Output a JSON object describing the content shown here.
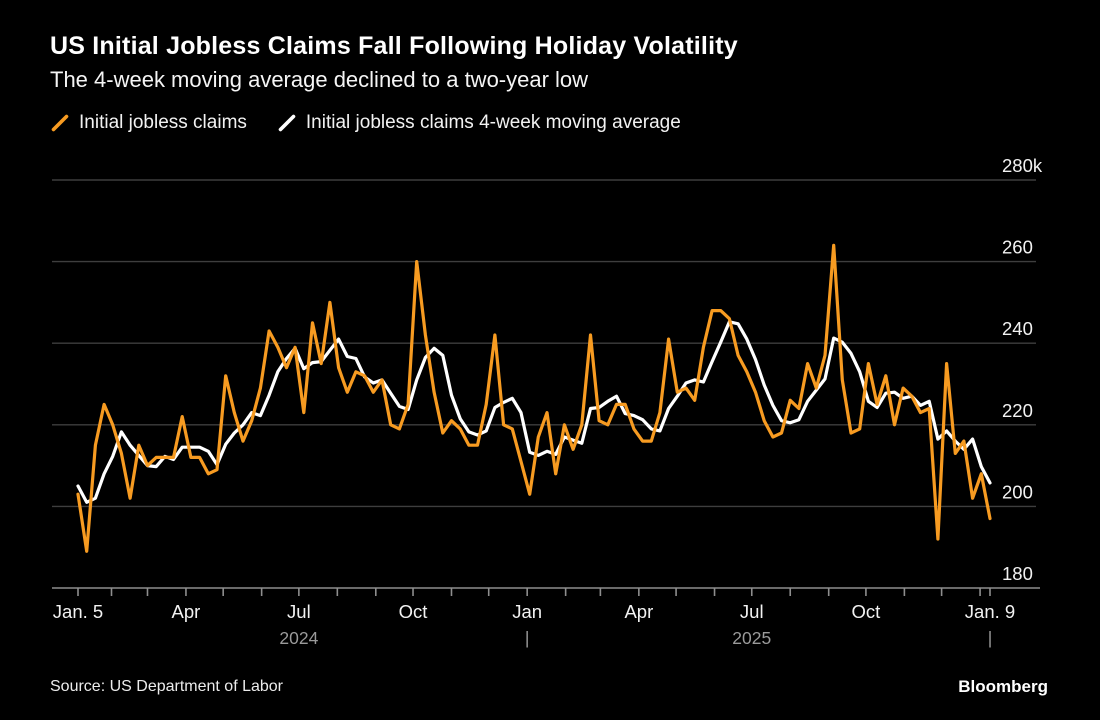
{
  "header": {
    "title": "US Initial Jobless Claims Fall Following Holiday Volatility",
    "subtitle": "The 4-week moving average declined to a two-year low"
  },
  "legend": [
    {
      "label": "Initial jobless claims",
      "color": "#F79B21",
      "swatch": "slash"
    },
    {
      "label": "Initial jobless claims 4-week moving average",
      "color": "#FFFFFF",
      "swatch": "slash"
    }
  ],
  "footer": {
    "source": "Source: US Department of Labor",
    "brand": "Bloomberg"
  },
  "chart_data": {
    "type": "line",
    "unit": "thousands of claims, weekly",
    "ylim": [
      180,
      280
    ],
    "grid": "horizontal",
    "legend_position": "top-left",
    "y_ticks": [
      {
        "value": 280,
        "label": "280k"
      },
      {
        "value": 260,
        "label": "260"
      },
      {
        "value": 240,
        "label": "240"
      },
      {
        "value": 220,
        "label": "220"
      },
      {
        "value": 200,
        "label": "200"
      },
      {
        "value": 180,
        "label": "180"
      }
    ],
    "x_axis": {
      "range_days": 735,
      "tick_day_offsets": [
        0,
        27,
        56,
        87,
        117,
        148,
        178,
        209,
        240,
        270,
        301,
        331,
        362,
        393,
        421,
        452,
        482,
        513,
        543,
        574,
        605,
        635,
        666,
        696,
        727,
        735
      ],
      "tick_labels": {
        "0": "Jan. 5",
        "3": "Apr",
        "6": "Jul",
        "9": "Oct",
        "12": "Jan",
        "15": "Apr",
        "18": "Jul",
        "21": "Oct",
        "25": "Jan. 9"
      },
      "year_row": [
        {
          "day": 178,
          "text": "2024"
        },
        {
          "day": 362,
          "text": "|"
        },
        {
          "day": 543,
          "text": "2025"
        },
        {
          "day": 735,
          "text": "|"
        }
      ]
    },
    "point_interval_days": 7,
    "series": [
      {
        "name": "Initial jobless claims",
        "color": "#F79B21",
        "values": [
          203,
          189,
          215,
          225,
          220,
          213,
          202,
          215,
          210,
          212,
          212,
          212,
          222,
          212,
          212,
          208,
          209,
          232,
          223,
          216,
          221,
          229,
          243,
          239,
          234,
          239,
          223,
          245,
          235,
          250,
          234,
          228,
          233,
          232,
          228,
          231,
          220,
          219,
          225,
          260,
          242,
          228,
          218,
          221,
          219,
          215,
          215,
          225,
          242,
          220,
          219,
          211,
          203,
          217,
          223,
          208,
          220,
          214,
          220,
          242,
          221,
          220,
          225,
          225,
          219,
          216,
          216,
          223,
          241,
          228,
          229,
          226,
          239,
          248,
          248,
          246,
          237,
          233,
          228,
          221,
          217,
          218,
          226,
          224,
          235,
          229,
          237,
          264,
          231,
          218,
          219,
          235,
          225,
          232,
          220,
          229,
          227,
          223,
          224,
          192,
          235,
          213,
          216,
          202,
          208,
          197
        ]
      },
      {
        "name": "Initial jobless claims 4-week moving average",
        "color": "#FFFFFF",
        "values": [
          205,
          201,
          202,
          208,
          212.25,
          218.25,
          215,
          212.5,
          210,
          209.75,
          212.25,
          211.5,
          214.5,
          214.5,
          214.5,
          213.5,
          210.25,
          215.25,
          218,
          220,
          223,
          222.25,
          227.25,
          233,
          236.25,
          238.75,
          233.75,
          235.25,
          235.5,
          238.25,
          241,
          236.75,
          236.25,
          231.75,
          230.25,
          231,
          227.75,
          224.5,
          223.75,
          231,
          236.5,
          238.75,
          237,
          227.25,
          221.5,
          218.25,
          217.5,
          218.5,
          224.25,
          225.5,
          226.5,
          223,
          213.25,
          212.5,
          213.5,
          212.75,
          217,
          216.25,
          215.5,
          224,
          224.25,
          225.75,
          227,
          222.75,
          222.25,
          221.25,
          219,
          218.5,
          224,
          227,
          230.25,
          231,
          230.5,
          235.5,
          240.25,
          245.25,
          244.75,
          241,
          236,
          229.75,
          224.75,
          221,
          220.5,
          221.25,
          225.75,
          228.5,
          231.25,
          241.25,
          240.25,
          237.5,
          233,
          225.75,
          224.25,
          227.75,
          228,
          226.5,
          227,
          224.75,
          225.75,
          216.5,
          218.5,
          216,
          214,
          216.5,
          209.75,
          205.75
        ]
      }
    ],
    "colors": {
      "background": "#000000",
      "gridline": "#3E3E3E",
      "axis_line": "#8E8E8E",
      "tick_mark": "#8E8E8E",
      "axis_label": "#F2F2F2",
      "year_label": "#9A9A9A"
    }
  }
}
